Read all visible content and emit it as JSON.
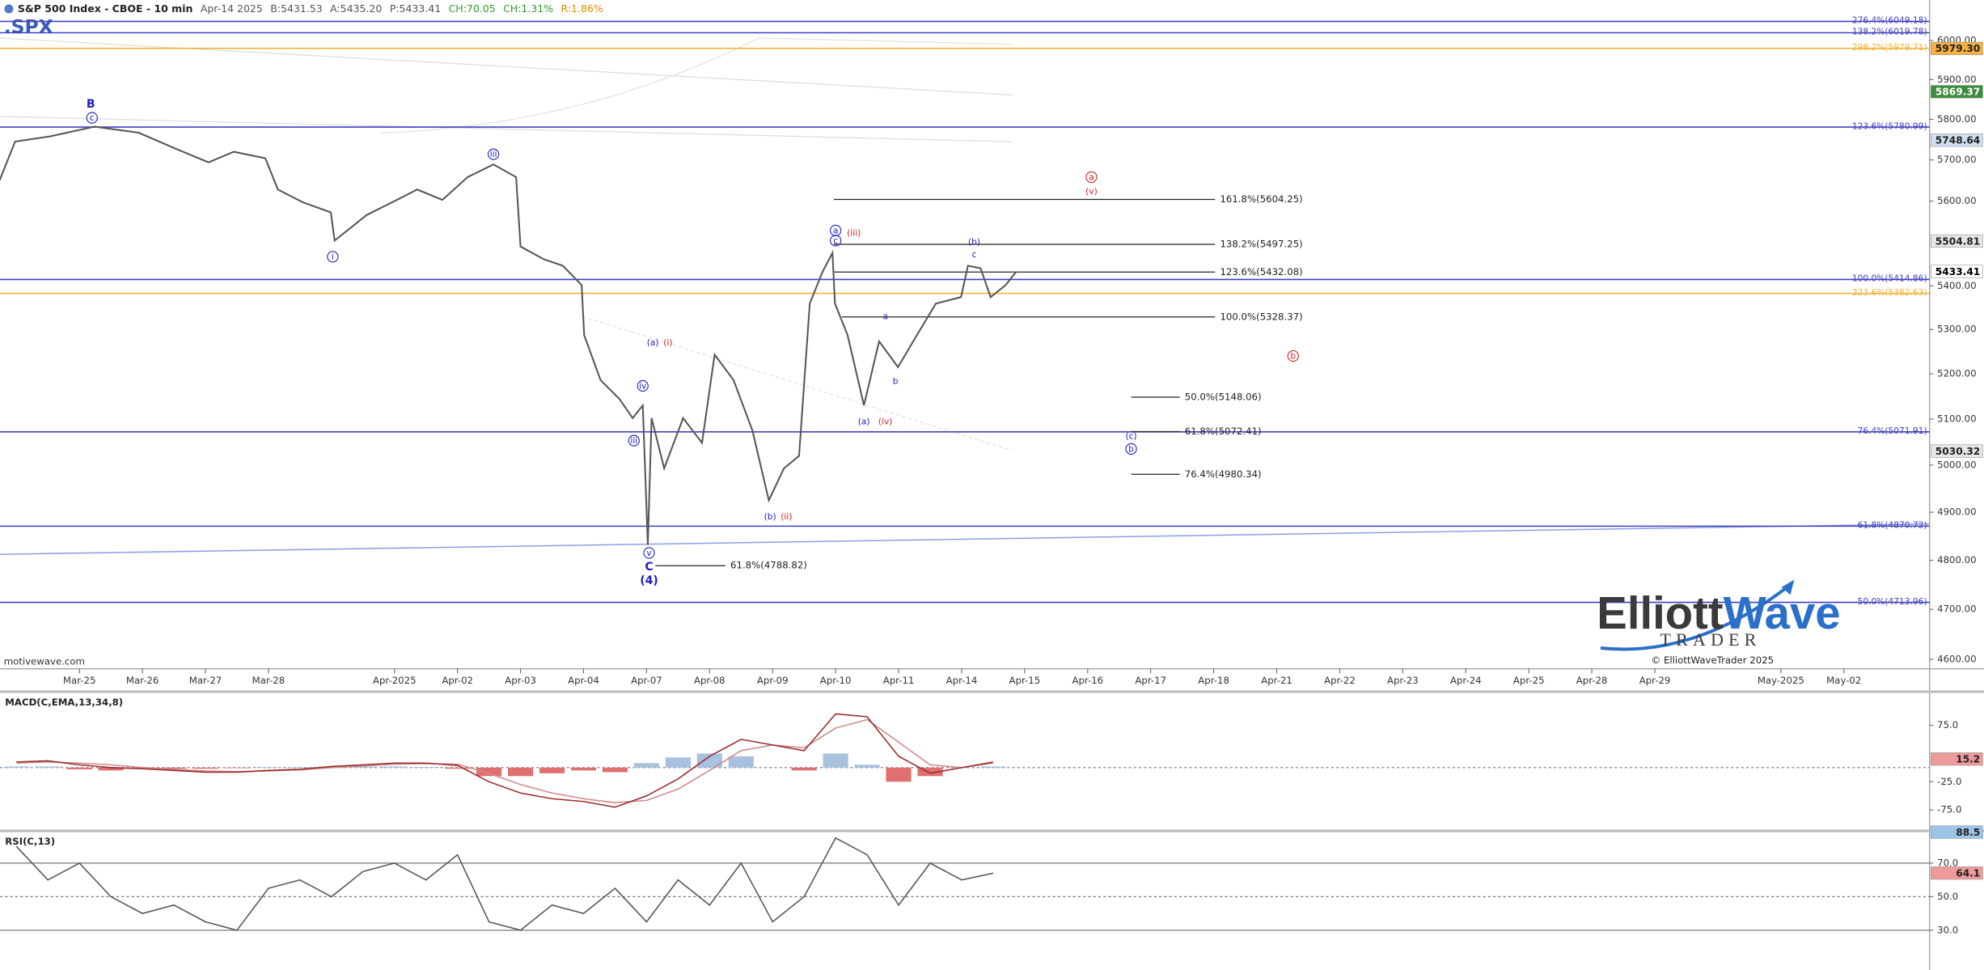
{
  "chart_data": [
    {
      "type": "line",
      "title": "S&P 500 Index - CBOE - 10 min",
      "symbol": ".SPX",
      "quote": [
        {
          "text": "Apr-14 2025",
          "color": "#555555"
        },
        {
          "text": "B:5431.53",
          "color": "#555555"
        },
        {
          "text": "A:5435.20",
          "color": "#555555"
        },
        {
          "text": "P:5433.41",
          "color": "#555555"
        },
        {
          "text": "CH:70.05",
          "color": "#2e9e2e"
        },
        {
          "text": "CH:1.31%",
          "color": "#2e9e2e"
        },
        {
          "text": "R:1.86%",
          "color": "#e08a00"
        }
      ],
      "color": "#555555",
      "log_scale": true,
      "x": [
        -1.27,
        -1.02,
        -0.46,
        0.24,
        0.94,
        1.55,
        2.05,
        2.45,
        2.95,
        3.15,
        3.55,
        3.99,
        4.05,
        4.56,
        4.96,
        5.36,
        5.76,
        6.16,
        6.57,
        6.93,
        7.0,
        7.37,
        7.67,
        7.97,
        8.01,
        8.27,
        8.57,
        8.78,
        8.94,
        9.02,
        9.08,
        9.28,
        9.58,
        9.88,
        10.08,
        10.38,
        10.68,
        10.94,
        11.18,
        11.42,
        11.59,
        11.79,
        11.95,
        11.99,
        12.19,
        12.45,
        12.69,
        12.99,
        13.29,
        13.59,
        13.99,
        14.1,
        14.3,
        14.46,
        14.7,
        14.86
      ],
      "values": [
        5649,
        5745,
        5758,
        5782,
        5767,
        5726,
        5694,
        5720,
        5704,
        5628,
        5597,
        5573,
        5506,
        5567,
        5597,
        5628,
        5603,
        5658,
        5689,
        5658,
        5492,
        5462,
        5447,
        5402,
        5287,
        5186,
        5144,
        5102,
        5130,
        4832,
        5102,
        4993,
        5102,
        5048,
        5243,
        5186,
        5075,
        4925,
        4993,
        5020,
        5359,
        5432,
        5477,
        5359,
        5287,
        5130,
        5273,
        5215,
        5287,
        5359,
        5374,
        5447,
        5441,
        5374,
        5402,
        5432
      ],
      "xlim": [
        -1.26,
        29.36
      ],
      "xticks": [
        {
          "value": 0,
          "label": "Mar-25"
        },
        {
          "value": 1,
          "label": "Mar-26"
        },
        {
          "value": 2,
          "label": "Mar-27"
        },
        {
          "value": 3,
          "label": "Mar-28"
        },
        {
          "value": 5,
          "label": "Apr-2025"
        },
        {
          "value": 6,
          "label": "Apr-02"
        },
        {
          "value": 7,
          "label": "Apr-03"
        },
        {
          "value": 8,
          "label": "Apr-04"
        },
        {
          "value": 9,
          "label": "Apr-07"
        },
        {
          "value": 10,
          "label": "Apr-08"
        },
        {
          "value": 11,
          "label": "Apr-09"
        },
        {
          "value": 12,
          "label": "Apr-10"
        },
        {
          "value": 13,
          "label": "Apr-11"
        },
        {
          "value": 14,
          "label": "Apr-14"
        },
        {
          "value": 15,
          "label": "Apr-15"
        },
        {
          "value": 16,
          "label": "Apr-16"
        },
        {
          "value": 17,
          "label": "Apr-17"
        },
        {
          "value": 18,
          "label": "Apr-18"
        },
        {
          "value": 19,
          "label": "Apr-21"
        },
        {
          "value": 20,
          "label": "Apr-22"
        },
        {
          "value": 21,
          "label": "Apr-23"
        },
        {
          "value": 22,
          "label": "Apr-24"
        },
        {
          "value": 23,
          "label": "Apr-25"
        },
        {
          "value": 24,
          "label": "Apr-28"
        },
        {
          "value": 25,
          "label": "Apr-29"
        },
        {
          "value": 27,
          "label": "May-2025"
        },
        {
          "value": 28,
          "label": "May-02"
        }
      ],
      "ylim": [
        4582.5,
        6105
      ],
      "yticks": [
        {
          "value": 6000,
          "label": "6000.00"
        },
        {
          "value": 5900,
          "label": "5900.00"
        },
        {
          "value": 5800,
          "label": "5800.00"
        },
        {
          "value": 5700,
          "label": "5700.00"
        },
        {
          "value": 5600,
          "label": "5600.00"
        },
        {
          "value": 5400,
          "label": "5400.00"
        },
        {
          "value": 5300,
          "label": "5300.00"
        },
        {
          "value": 5200,
          "label": "5200.00"
        },
        {
          "value": 5100,
          "label": "5100.00"
        },
        {
          "value": 5000,
          "label": "5000.00"
        },
        {
          "value": 4900,
          "label": "4900.00"
        },
        {
          "value": 4800,
          "label": "4800.00"
        },
        {
          "value": 4700,
          "label": "4700.00"
        },
        {
          "value": 4600,
          "label": "4600.00"
        }
      ],
      "levels": [
        {
          "label": "276.4%(6049.18)",
          "value": 6049.18,
          "color": "#4040c0"
        },
        {
          "label": "138.2%(6019.78)",
          "value": 6019.78,
          "color": "#4040c0"
        },
        {
          "label": "298.2%(5979.71)",
          "value": 5979.71,
          "color": "#f0b030"
        },
        {
          "label": "123.6%(5780.99)",
          "value": 5780.99,
          "color": "#4040c0"
        },
        {
          "label": "100.0%(5414.86)",
          "value": 5414.86,
          "color": "#4040c0"
        },
        {
          "label": "223.6%(5382.63)",
          "value": 5382.63,
          "color": "#f0b030"
        },
        {
          "label": "76.4%(5071.91)",
          "value": 5071.91,
          "color": "#4040c0"
        },
        {
          "label": "61.8%(4870.72)",
          "value": 4870.72,
          "color": "#4040c0"
        },
        {
          "label": "50.0%(4713.96)",
          "value": 4713.96,
          "color": "#4040c0"
        }
      ],
      "segments": [
        {
          "label": "161.8%(5604.25)",
          "value": 5604.25,
          "x_start": 11.97,
          "x_end": 18.02
        },
        {
          "label": "138.2%(5497.25)",
          "value": 5497.25,
          "x_start": 11.97,
          "x_end": 18.02
        },
        {
          "label": "123.6%(5432.08)",
          "value": 5432.08,
          "x_start": 11.97,
          "x_end": 18.02
        },
        {
          "label": "100.0%(5328.37)",
          "value": 5328.37,
          "x_start": 12.1,
          "x_end": 18.02
        },
        {
          "label": "50.0%(5148.06)",
          "value": 5148.06,
          "x_start": 16.69,
          "x_end": 17.46
        },
        {
          "label": "61.8%(5072.41)",
          "value": 5072.41,
          "x_start": 16.69,
          "x_end": 17.46
        },
        {
          "label": "76.4%(4980.34)",
          "value": 4980.34,
          "x_start": 16.69,
          "x_end": 17.46
        },
        {
          "label": "61.8%(4788.82)",
          "value": 4788.82,
          "x_start": 9.14,
          "x_end": 10.25
        }
      ],
      "price_tags": [
        {
          "label": "5979.30",
          "value": 5979.3,
          "color": "#f5b041",
          "text_color": "#222222"
        },
        {
          "label": "5869.37",
          "value": 5869.37,
          "color": "#3d8b3d",
          "text_color": "#ffffff"
        },
        {
          "label": "5748.64",
          "value": 5748.64,
          "color": "#cfe0f3",
          "text_color": "#222222"
        },
        {
          "label": "5504.81",
          "value": 5504.81,
          "color": "#e6e6e6",
          "text_color": "#222222"
        },
        {
          "label": "5433.41",
          "value": 5433.41,
          "color": "#ffffff",
          "text_color": "#000000"
        },
        {
          "label": "5030.32",
          "value": 5030.32,
          "color": "#e6e6e6",
          "text_color": "#222222"
        }
      ],
      "annotations": [
        {
          "text": "B",
          "x": 0.18,
          "y": 5839,
          "color": "#2020c0",
          "bold": true,
          "circled": false
        },
        {
          "text": "c",
          "x": 0.2,
          "y": 5804,
          "color": "#2020c0",
          "bold": false,
          "circled": true
        },
        {
          "text": "iii",
          "x": 6.57,
          "y": 5714,
          "color": "#2020c0",
          "bold": false,
          "circled": true
        },
        {
          "text": "i",
          "x": 4.02,
          "y": 5468,
          "color": "#2020c0",
          "bold": false,
          "circled": true
        },
        {
          "text": "a",
          "x": 12.0,
          "y": 5530,
          "color": "#2020c0",
          "bold": false,
          "circled": true
        },
        {
          "text": "c",
          "x": 12.0,
          "y": 5506,
          "color": "#2020c0",
          "bold": false,
          "circled": true
        },
        {
          "text": "(iii)",
          "x": 12.29,
          "y": 5524,
          "color": "#d02020",
          "bold": false,
          "circled": false
        },
        {
          "text": "(b)",
          "x": 14.2,
          "y": 5503,
          "color": "#2020c0",
          "bold": false,
          "circled": false
        },
        {
          "text": "c",
          "x": 14.2,
          "y": 5474,
          "color": "#2020c0",
          "bold": false,
          "circled": false
        },
        {
          "text": "a",
          "x": 16.06,
          "y": 5658,
          "color": "#d02020",
          "bold": false,
          "circled": true
        },
        {
          "text": "(v)",
          "x": 16.06,
          "y": 5624,
          "color": "#d02020",
          "bold": false,
          "circled": false
        },
        {
          "text": "a",
          "x": 12.79,
          "y": 5330,
          "color": "#2020c0",
          "bold": false,
          "circled": false
        },
        {
          "text": "b",
          "x": 12.95,
          "y": 5184,
          "color": "#2020c0",
          "bold": false,
          "circled": false
        },
        {
          "text": "(a)",
          "x": 12.45,
          "y": 5095,
          "color": "#2020c0",
          "bold": false,
          "circled": false
        },
        {
          "text": "(iv)",
          "x": 12.79,
          "y": 5095,
          "color": "#d02020",
          "bold": false,
          "circled": false
        },
        {
          "text": "b",
          "x": 19.26,
          "y": 5240,
          "color": "#d02020",
          "bold": false,
          "circled": true
        },
        {
          "text": "(c)",
          "x": 16.69,
          "y": 5063,
          "color": "#2020c0",
          "bold": false,
          "circled": false
        },
        {
          "text": "b",
          "x": 16.69,
          "y": 5035,
          "color": "#2020c0",
          "bold": false,
          "circled": true
        },
        {
          "text": "(a)",
          "x": 9.1,
          "y": 5270,
          "color": "#2020c0",
          "bold": false,
          "circled": false
        },
        {
          "text": "(i)",
          "x": 9.34,
          "y": 5270,
          "color": "#d02020",
          "bold": false,
          "circled": false
        },
        {
          "text": "iv",
          "x": 8.94,
          "y": 5173,
          "color": "#2020c0",
          "bold": false,
          "circled": true
        },
        {
          "text": "iii",
          "x": 8.8,
          "y": 5053,
          "color": "#2020c0",
          "bold": false,
          "circled": true
        },
        {
          "text": "(b)",
          "x": 10.96,
          "y": 4891,
          "color": "#2020c0",
          "bold": false,
          "circled": false
        },
        {
          "text": "(ii)",
          "x": 11.22,
          "y": 4891,
          "color": "#d02020",
          "bold": false,
          "circled": false
        },
        {
          "text": "v",
          "x": 9.04,
          "y": 4815,
          "color": "#2020c0",
          "bold": false,
          "circled": true
        },
        {
          "text": "C",
          "x": 9.04,
          "y": 4787,
          "color": "#2020c0",
          "bold": true,
          "circled": false
        },
        {
          "text": "(4)",
          "x": 9.04,
          "y": 4759,
          "color": "#2020c0",
          "bold": true,
          "circled": false
        }
      ],
      "source": "motivewave.com",
      "brand": [
        "Elliott",
        "Wave",
        "TRADER"
      ],
      "copyright": "© ElliottWaveTrader 2025"
    },
    {
      "type": "macd",
      "title": "MACD(C,EMA,13,34,8)",
      "x": [
        -1,
        -0.5,
        0,
        0.5,
        1,
        1.5,
        2,
        2.5,
        3,
        3.5,
        4,
        4.5,
        5,
        5.5,
        6,
        6.5,
        7,
        7.5,
        8,
        8.5,
        9,
        9.5,
        10,
        10.5,
        11,
        11.5,
        12,
        12.5,
        13,
        13.5,
        14,
        14.5
      ],
      "macd": {
        "color": "#9b2c2c",
        "values": [
          10,
          12,
          5,
          0,
          -2,
          -5,
          -8,
          -8,
          -5,
          -3,
          2,
          5,
          8,
          8,
          4,
          -25,
          -45,
          -55,
          -60,
          -70,
          -50,
          -20,
          20,
          50,
          40,
          30,
          95,
          90,
          20,
          -10,
          0,
          10
        ]
      },
      "signal": {
        "color": "#d08a8a",
        "values": [
          8,
          10,
          8,
          5,
          0,
          -3,
          -6,
          -7,
          -6,
          -4,
          0,
          3,
          6,
          7,
          6,
          -10,
          -30,
          -45,
          -55,
          -62,
          -58,
          -38,
          -5,
          30,
          40,
          35,
          70,
          85,
          45,
          5,
          0,
          8
        ]
      },
      "histogram": {
        "colors": [
          "#a7c1de",
          "#e07070"
        ],
        "values": [
          2,
          2,
          -3,
          -5,
          -2,
          -2,
          -2,
          -1,
          1,
          1,
          2,
          2,
          2,
          1,
          -2,
          -15,
          -15,
          -10,
          -5,
          -8,
          8,
          18,
          25,
          20,
          0,
          -5,
          25,
          5,
          -25,
          -15,
          0,
          2
        ]
      },
      "xlim": [
        -1.26,
        29.36
      ],
      "ylim": [
        -108.6,
        131
      ],
      "yticks": [
        {
          "value": 75,
          "label": "75.0"
        },
        {
          "value": -25,
          "label": "-25.0"
        },
        {
          "value": -75,
          "label": "-75.0"
        }
      ],
      "price_tags": [
        {
          "label": "15.2",
          "value": 15.2,
          "color": "#ee9a9a",
          "text_color": "#222222"
        }
      ]
    },
    {
      "type": "rsi",
      "title": "RSI(C,13)",
      "x": [
        -1,
        -0.5,
        0,
        0.5,
        1,
        1.5,
        2,
        2.5,
        3,
        3.5,
        4,
        4.5,
        5,
        5.5,
        6,
        6.5,
        7,
        7.5,
        8,
        8.5,
        9,
        9.5,
        10,
        10.5,
        11,
        11.5,
        12,
        12.5,
        13,
        13.5,
        14,
        14.5
      ],
      "values": [
        80,
        60,
        70,
        50,
        40,
        45,
        35,
        30,
        55,
        60,
        50,
        65,
        70,
        60,
        75,
        35,
        30,
        45,
        40,
        55,
        35,
        60,
        45,
        70,
        35,
        50,
        85,
        75,
        45,
        70,
        60,
        64
      ],
      "color": "#555555",
      "xlim": [
        -1.26,
        29.36
      ],
      "ylim": [
        6.6,
        88.1
      ],
      "yticks": [
        {
          "value": 70,
          "label": "70.0"
        },
        {
          "value": 50,
          "label": "50.0"
        },
        {
          "value": 30,
          "label": "30.0"
        }
      ],
      "price_tags": [
        {
          "label": "88.5",
          "value": 88.5,
          "color": "#9bc4e8",
          "text_color": "#222222"
        },
        {
          "label": "64.1",
          "value": 64.1,
          "color": "#ee9a9a",
          "text_color": "#222222"
        }
      ]
    }
  ]
}
